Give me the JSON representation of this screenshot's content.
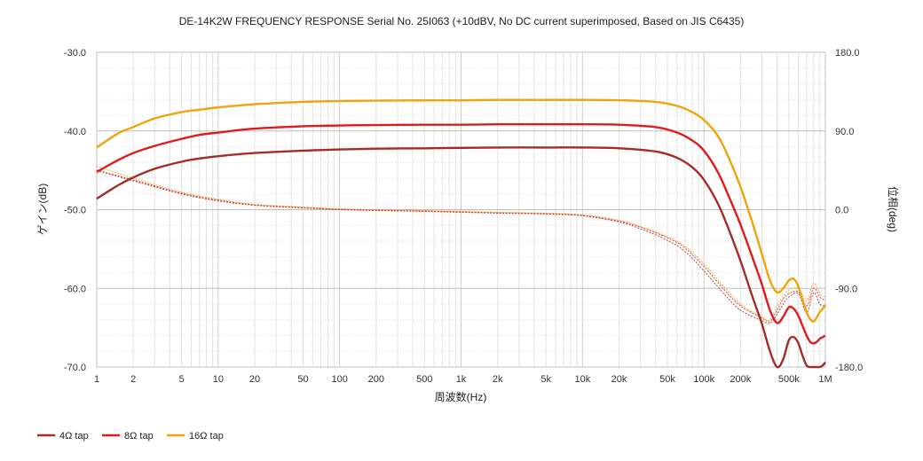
{
  "chart_data": {
    "type": "line",
    "title": "DE-14K2W FREQUENCY RESPONSE Serial No. 25I063 (+10dBV,  No DC current superimposed,  Based on JIS C6435)",
    "xlabel": "周波数(Hz)",
    "ylabel": "ゲイン(dB)",
    "y2label": "位相(deg)",
    "xscale": "log",
    "xlim": [
      1,
      1000000
    ],
    "ylim": [
      -70,
      -30
    ],
    "y2lim": [
      -180,
      180
    ],
    "x_ticks": [
      1,
      2,
      5,
      10,
      20,
      50,
      100,
      200,
      500,
      1000,
      2000,
      5000,
      10000,
      20000,
      50000,
      100000,
      200000,
      500000,
      1000000
    ],
    "x_tick_labels": [
      "1",
      "2",
      "5",
      "10",
      "20",
      "50",
      "100",
      "200",
      "500",
      "1k",
      "2k",
      "5k",
      "10k",
      "20k",
      "50k",
      "100k",
      "200k",
      "500k",
      "1M"
    ],
    "y_tick_labels": [
      "-30.0",
      "-40.0",
      "-50.0",
      "-60.0",
      "-70.0"
    ],
    "y2_tick_labels": [
      "180.0",
      "90.0",
      "0.0",
      "-90.0",
      "-180.0"
    ],
    "grid": true,
    "legend_position": "bottom-left",
    "gain_series": [
      {
        "name": "4Ω tap",
        "color": "#a52a2a",
        "x": [
          1,
          1.5,
          2,
          3,
          5,
          7,
          10,
          20,
          50,
          100,
          200,
          500,
          1000,
          2000,
          5000,
          10000,
          20000,
          40000,
          60000,
          80000,
          100000,
          130000,
          160000,
          200000,
          250000,
          300000,
          350000,
          400000,
          450000,
          500000,
          550000,
          600000,
          650000,
          700000,
          750000,
          800000,
          850000,
          900000,
          950000,
          1000000
        ],
        "values": [
          -48.6,
          -46.9,
          -45.9,
          -44.8,
          -43.9,
          -43.5,
          -43.2,
          -42.8,
          -42.5,
          -42.35,
          -42.25,
          -42.2,
          -42.15,
          -42.1,
          -42.1,
          -42.1,
          -42.2,
          -42.6,
          -43.4,
          -44.6,
          -46.2,
          -49.2,
          -52.5,
          -56.5,
          -61.0,
          -64.5,
          -68.0,
          -70.1,
          -69.0,
          -66.6,
          -66.2,
          -67.0,
          -68.6,
          -69.8,
          -70.3,
          -70.5,
          -70.5,
          -70.2,
          -69.8,
          -69.4
        ]
      },
      {
        "name": "8Ω tap",
        "color": "#e01b1b",
        "x": [
          1,
          1.5,
          2,
          3,
          5,
          7,
          10,
          20,
          50,
          100,
          200,
          500,
          1000,
          2000,
          5000,
          10000,
          20000,
          40000,
          60000,
          80000,
          100000,
          130000,
          160000,
          200000,
          250000,
          300000,
          350000,
          400000,
          450000,
          500000,
          550000,
          600000,
          650000,
          700000,
          750000,
          800000,
          850000,
          900000,
          950000,
          1000000
        ],
        "values": [
          -45.2,
          -43.7,
          -42.8,
          -41.9,
          -41.0,
          -40.5,
          -40.2,
          -39.7,
          -39.4,
          -39.3,
          -39.25,
          -39.2,
          -39.2,
          -39.15,
          -39.15,
          -39.15,
          -39.2,
          -39.5,
          -40.2,
          -41.2,
          -42.5,
          -45.2,
          -48.3,
          -51.9,
          -56.0,
          -59.5,
          -62.8,
          -64.4,
          -63.6,
          -62.4,
          -62.6,
          -63.5,
          -64.8,
          -66.0,
          -66.8,
          -67.0,
          -66.8,
          -66.4,
          -66.2,
          -66.0
        ]
      },
      {
        "name": "16Ω tap",
        "color": "#f0a30a",
        "x": [
          1,
          1.5,
          2,
          3,
          5,
          7,
          10,
          20,
          50,
          100,
          200,
          500,
          1000,
          2000,
          5000,
          10000,
          20000,
          40000,
          60000,
          80000,
          100000,
          130000,
          160000,
          200000,
          250000,
          300000,
          350000,
          400000,
          450000,
          500000,
          550000,
          600000,
          650000,
          700000,
          750000,
          800000,
          850000,
          900000,
          950000,
          1000000
        ],
        "values": [
          -42.1,
          -40.3,
          -39.5,
          -38.4,
          -37.6,
          -37.3,
          -37.0,
          -36.6,
          -36.3,
          -36.2,
          -36.15,
          -36.1,
          -36.1,
          -36.05,
          -36.05,
          -36.05,
          -36.1,
          -36.3,
          -36.8,
          -37.6,
          -38.6,
          -40.6,
          -43.4,
          -47.1,
          -51.6,
          -55.6,
          -59.0,
          -60.5,
          -60.0,
          -59.0,
          -58.8,
          -59.8,
          -61.5,
          -63.0,
          -63.9,
          -64.2,
          -63.7,
          -63.0,
          -62.6,
          -62.1
        ]
      }
    ],
    "phase_series": [
      {
        "name": "4Ω tap",
        "color": "#a52a2a",
        "x": [
          1,
          2,
          5,
          10,
          20,
          50,
          100,
          200,
          500,
          1000,
          2000,
          5000,
          10000,
          20000,
          30000,
          50000,
          70000,
          100000,
          150000,
          200000,
          300000,
          350000,
          400000,
          450000,
          500000,
          600000,
          700000,
          800000,
          900000,
          1000000
        ],
        "values": [
          45,
          33,
          18,
          10,
          5,
          2,
          0,
          -1,
          -2,
          -3,
          -4,
          -5,
          -7,
          -14,
          -22,
          -35,
          -48,
          -70,
          -98,
          -115,
          -127,
          -130,
          -120,
          -108,
          -100,
          -96,
          -118,
          -95,
          -108,
          -110
        ]
      },
      {
        "name": "8Ω tap",
        "color": "#e01b1b",
        "x": [
          1,
          2,
          5,
          10,
          20,
          50,
          100,
          200,
          500,
          1000,
          2000,
          5000,
          10000,
          20000,
          30000,
          50000,
          70000,
          100000,
          150000,
          200000,
          300000,
          350000,
          400000,
          450000,
          500000,
          600000,
          700000,
          800000,
          900000,
          1000000
        ],
        "values": [
          45,
          34,
          19,
          11,
          5.5,
          2.5,
          0.5,
          -0.5,
          -1.5,
          -2.5,
          -3.5,
          -4.5,
          -6.5,
          -13,
          -20,
          -32,
          -44,
          -65,
          -93,
          -110,
          -124,
          -128,
          -115,
          -102,
          -96,
          -94,
          -110,
          -90,
          -100,
          -104
        ]
      },
      {
        "name": "16Ω tap",
        "color": "#f0a30a",
        "x": [
          1,
          2,
          5,
          10,
          20,
          50,
          100,
          200,
          500,
          1000,
          2000,
          5000,
          10000,
          20000,
          30000,
          50000,
          70000,
          100000,
          150000,
          200000,
          300000,
          350000,
          400000,
          450000,
          500000,
          600000,
          700000,
          800000,
          900000,
          1000000
        ],
        "values": [
          50,
          36,
          20,
          12,
          6,
          3,
          1,
          0,
          -1,
          -2,
          -3,
          -4,
          -6,
          -12,
          -19,
          -31,
          -42,
          -62,
          -90,
          -108,
          -123,
          -126,
          -110,
          -98,
          -92,
          -90,
          -104,
          -84,
          -96,
          -100
        ]
      }
    ]
  }
}
